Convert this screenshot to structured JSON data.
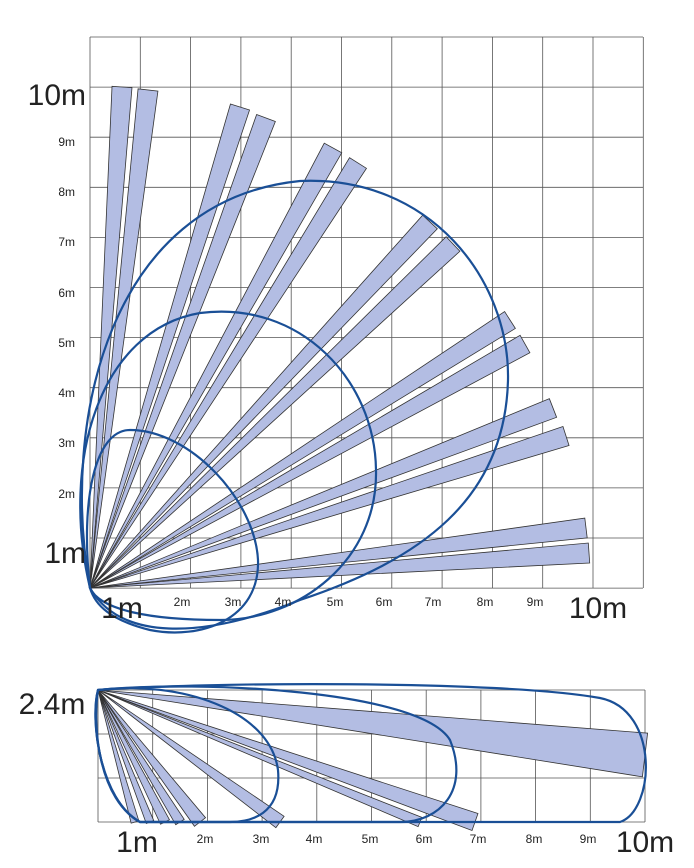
{
  "top_view": {
    "y_labels": [
      "10m",
      "9m",
      "8m",
      "7m",
      "6m",
      "5m",
      "4m",
      "3m",
      "2m",
      "1m"
    ],
    "x_labels": [
      "1m",
      "2m",
      "3m",
      "4m",
      "5m",
      "6m",
      "7m",
      "8m",
      "9m",
      "10m"
    ]
  },
  "side_view": {
    "height_label": "2.4m",
    "x_labels": [
      "1m",
      "2m",
      "3m",
      "4m",
      "5m",
      "6m",
      "7m",
      "8m",
      "9m",
      "10m"
    ]
  }
}
